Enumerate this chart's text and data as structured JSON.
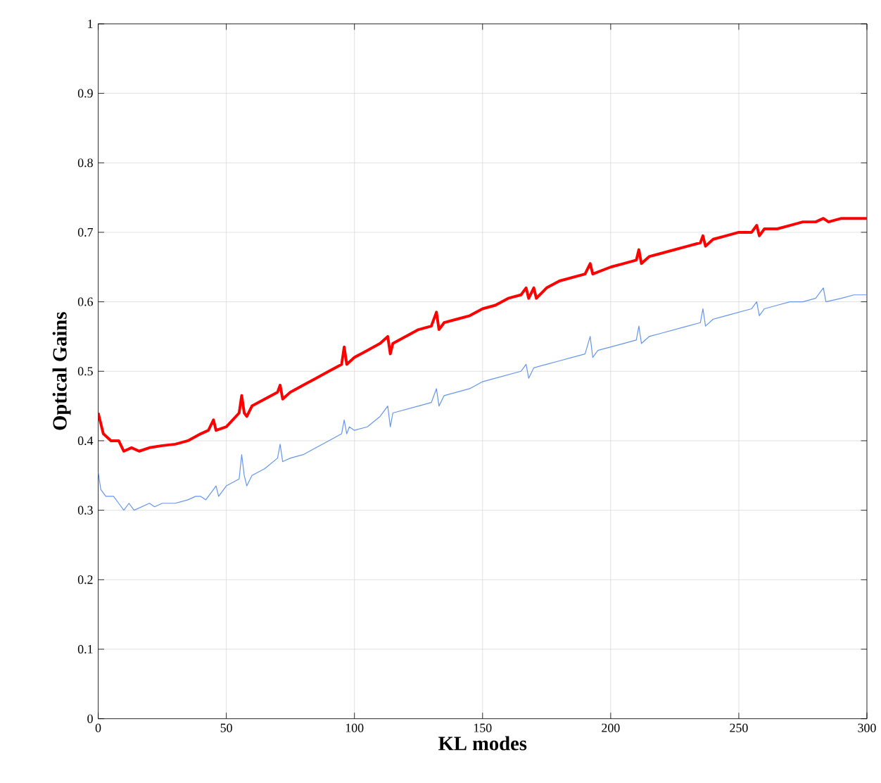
{
  "chart_data": {
    "type": "line",
    "xlabel": "KL modes",
    "ylabel": "Optical Gains",
    "xlim": [
      0,
      300
    ],
    "ylim": [
      0,
      1
    ],
    "xticks": [
      0,
      50,
      100,
      150,
      200,
      250,
      300
    ],
    "yticks": [
      0,
      0.1,
      0.2,
      0.3,
      0.4,
      0.5,
      0.6,
      0.7,
      0.8,
      0.9,
      1
    ],
    "grid": true,
    "marker": "none",
    "line_style": "solid",
    "series": [
      {
        "color": "#ff0000",
        "x": [
          0,
          2,
          5,
          8,
          10,
          13,
          16,
          20,
          25,
          30,
          35,
          40,
          43,
          45,
          46,
          50,
          55,
          56,
          57,
          58,
          60,
          65,
          70,
          71,
          72,
          75,
          80,
          85,
          90,
          95,
          96,
          97,
          100,
          105,
          110,
          113,
          114,
          115,
          120,
          125,
          130,
          132,
          133,
          135,
          140,
          145,
          150,
          155,
          160,
          165,
          167,
          168,
          170,
          171,
          175,
          180,
          185,
          190,
          192,
          193,
          200,
          205,
          210,
          211,
          212,
          215,
          220,
          225,
          230,
          235,
          236,
          237,
          240,
          245,
          250,
          255,
          257,
          258,
          260,
          265,
          270,
          275,
          280,
          283,
          285,
          290,
          295,
          300
        ],
        "values": [
          0.44,
          0.41,
          0.4,
          0.4,
          0.385,
          0.39,
          0.385,
          0.39,
          0.393,
          0.395,
          0.4,
          0.41,
          0.415,
          0.43,
          0.415,
          0.42,
          0.44,
          0.465,
          0.44,
          0.435,
          0.45,
          0.46,
          0.47,
          0.48,
          0.46,
          0.47,
          0.48,
          0.49,
          0.5,
          0.51,
          0.535,
          0.51,
          0.52,
          0.53,
          0.54,
          0.55,
          0.525,
          0.54,
          0.55,
          0.56,
          0.565,
          0.585,
          0.56,
          0.57,
          0.575,
          0.58,
          0.59,
          0.595,
          0.605,
          0.61,
          0.62,
          0.605,
          0.62,
          0.605,
          0.62,
          0.63,
          0.635,
          0.64,
          0.655,
          0.64,
          0.65,
          0.655,
          0.66,
          0.675,
          0.655,
          0.665,
          0.67,
          0.675,
          0.68,
          0.685,
          0.695,
          0.68,
          0.69,
          0.695,
          0.7,
          0.7,
          0.71,
          0.695,
          0.705,
          0.705,
          0.71,
          0.715,
          0.715,
          0.72,
          0.715,
          0.72,
          0.72,
          0.72
        ]
      },
      {
        "color": "#6495ed",
        "x": [
          0,
          1,
          3,
          6,
          8,
          10,
          12,
          14,
          17,
          20,
          22,
          25,
          30,
          35,
          38,
          40,
          42,
          45,
          46,
          47,
          50,
          55,
          56,
          57,
          58,
          60,
          65,
          70,
          71,
          72,
          75,
          80,
          85,
          90,
          95,
          96,
          97,
          98,
          100,
          105,
          110,
          113,
          114,
          115,
          120,
          125,
          130,
          132,
          133,
          135,
          140,
          145,
          150,
          155,
          160,
          165,
          167,
          168,
          170,
          175,
          180,
          185,
          190,
          192,
          193,
          195,
          200,
          205,
          210,
          211,
          212,
          215,
          220,
          225,
          230,
          235,
          236,
          237,
          240,
          245,
          250,
          255,
          257,
          258,
          260,
          265,
          270,
          275,
          280,
          283,
          284,
          290,
          295,
          300
        ],
        "values": [
          0.355,
          0.33,
          0.32,
          0.32,
          0.31,
          0.3,
          0.31,
          0.3,
          0.305,
          0.31,
          0.305,
          0.31,
          0.31,
          0.315,
          0.32,
          0.32,
          0.315,
          0.33,
          0.335,
          0.32,
          0.335,
          0.345,
          0.38,
          0.35,
          0.335,
          0.35,
          0.36,
          0.375,
          0.395,
          0.37,
          0.375,
          0.38,
          0.39,
          0.4,
          0.41,
          0.43,
          0.41,
          0.42,
          0.415,
          0.42,
          0.435,
          0.45,
          0.42,
          0.44,
          0.445,
          0.45,
          0.455,
          0.475,
          0.45,
          0.465,
          0.47,
          0.475,
          0.485,
          0.49,
          0.495,
          0.5,
          0.51,
          0.49,
          0.505,
          0.51,
          0.515,
          0.52,
          0.525,
          0.55,
          0.52,
          0.53,
          0.535,
          0.54,
          0.545,
          0.565,
          0.54,
          0.55,
          0.555,
          0.56,
          0.565,
          0.57,
          0.59,
          0.565,
          0.575,
          0.58,
          0.585,
          0.59,
          0.6,
          0.58,
          0.59,
          0.595,
          0.6,
          0.6,
          0.605,
          0.62,
          0.6,
          0.605,
          0.61,
          0.61
        ]
      }
    ]
  }
}
